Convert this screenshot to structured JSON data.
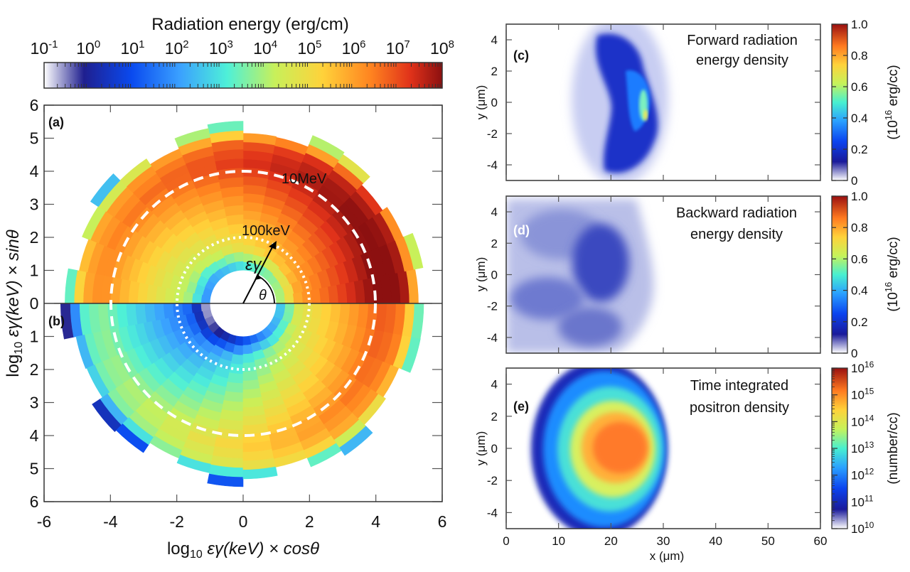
{
  "top_colorbar": {
    "title": "Radiation energy (erg/cm)",
    "ticks": [
      {
        "base": "10",
        "exp": "-1"
      },
      {
        "base": "10",
        "exp": "0"
      },
      {
        "base": "10",
        "exp": "1"
      },
      {
        "base": "10",
        "exp": "2"
      },
      {
        "base": "10",
        "exp": "3"
      },
      {
        "base": "10",
        "exp": "4"
      },
      {
        "base": "10",
        "exp": "5"
      },
      {
        "base": "10",
        "exp": "6"
      },
      {
        "base": "10",
        "exp": "7"
      },
      {
        "base": "10",
        "exp": "8"
      }
    ]
  },
  "panel_a": {
    "label": "(a)",
    "ring_10mev": "10MeV",
    "ring_100kev": "100keV",
    "eps_symbol": "εγ",
    "theta_symbol": "θ"
  },
  "panel_b": {
    "label": "(b)"
  },
  "polar_axes": {
    "xlabel_prefix": "log",
    "xlabel_sub": "10",
    "xlabel_suffix": " εγ(keV) × cosθ",
    "ylabel_prefix": "log",
    "ylabel_sub": "10",
    "ylabel_suffix": " εγ(keV) × sinθ",
    "x_ticks": [
      "-6",
      "-4",
      "-2",
      "0",
      "2",
      "4",
      "6"
    ],
    "y_ticks": [
      "6",
      "5",
      "4",
      "3",
      "2",
      "1",
      "0",
      "1",
      "2",
      "3",
      "4",
      "5",
      "6"
    ]
  },
  "panel_c": {
    "label": "(c)",
    "text_line1": "Forward radiation",
    "text_line2": "energy density",
    "ylabel": "y (μm)",
    "y_ticks": [
      "4",
      "2",
      "0",
      "-2",
      "-4"
    ],
    "cbar_ticks": [
      "1.0",
      "0.8",
      "0.6",
      "0.4",
      "0.2",
      "0"
    ],
    "cbar_label_pre": "(10",
    "cbar_label_exp": "16",
    "cbar_label_post": " erg/cc)"
  },
  "panel_d": {
    "label": "(d)",
    "text_line1": "Backward radiation",
    "text_line2": "energy density",
    "ylabel": "y (μm)",
    "y_ticks": [
      "4",
      "2",
      "0",
      "-2",
      "-4"
    ],
    "cbar_ticks": [
      "1.0",
      "0.8",
      "0.6",
      "0.4",
      "0.2",
      "0"
    ],
    "cbar_label_pre": "(10",
    "cbar_label_exp": "16",
    "cbar_label_post": " erg/cc)"
  },
  "panel_e": {
    "label": "(e)",
    "text_line1": "Time integrated",
    "text_line2": "positron density",
    "ylabel": "y (μm)",
    "xlabel": "x (μm)",
    "y_ticks": [
      "4",
      "2",
      "0",
      "-2",
      "-4"
    ],
    "x_ticks": [
      "0",
      "10",
      "20",
      "30",
      "40",
      "50",
      "60"
    ],
    "cbar_exps": [
      "16",
      "15",
      "14",
      "13",
      "12",
      "11",
      "10"
    ],
    "cbar_base": "10",
    "cbar_label": "(number/cc)"
  },
  "chart_data": [
    {
      "type": "heatmap",
      "panel": "(a)/(b)",
      "coordinate_system": "polar, radius = log10 εγ(keV), angle = θ",
      "x_range": [
        -6,
        6
      ],
      "y_range": [
        -6,
        6
      ],
      "colorbar": {
        "label": "Radiation energy (erg/cm)",
        "scale": "log",
        "range": [
          0.1,
          100000000
        ]
      },
      "reference_rings": [
        {
          "label": "100keV",
          "radius": 2
        },
        {
          "label": "10MeV",
          "radius": 4
        }
      ],
      "radial_extent_log10_keV": [
        1,
        5.3
      ],
      "peak_region": "upper half (forward), near θ≈20°, log10εγ≈4–5.5, ~10^7–10^8 erg/cm"
    },
    {
      "type": "heatmap",
      "panel": "(c)",
      "title": "Forward radiation energy density",
      "x_range": [
        0,
        60
      ],
      "y_range": [
        -5,
        5
      ],
      "colorbar": {
        "label": "(10^16 erg/cc)",
        "range": [
          0,
          1.0
        ]
      },
      "hotspot": {
        "x": 23,
        "y": 0,
        "value": 0.6
      }
    },
    {
      "type": "heatmap",
      "panel": "(d)",
      "title": "Backward radiation energy density",
      "x_range": [
        0,
        60
      ],
      "y_range": [
        -5,
        5
      ],
      "colorbar": {
        "label": "(10^16 erg/cc)",
        "range": [
          0,
          1.0
        ]
      },
      "extent_x": [
        0,
        28
      ],
      "max_value": 0.2
    },
    {
      "type": "heatmap",
      "panel": "(e)",
      "title": "Time integrated positron density",
      "x_range": [
        0,
        60
      ],
      "y_range": [
        -5,
        5
      ],
      "xlabel": "x (μm)",
      "ylabel": "y (μm)",
      "colorbar": {
        "label": "(number/cc)",
        "scale": "log",
        "range": [
          10000000000,
          10000000000000000
        ]
      },
      "core": {
        "x": [
          16,
          27
        ],
        "y": [
          -2,
          2
        ],
        "value": 1000000000000000
      }
    }
  ]
}
